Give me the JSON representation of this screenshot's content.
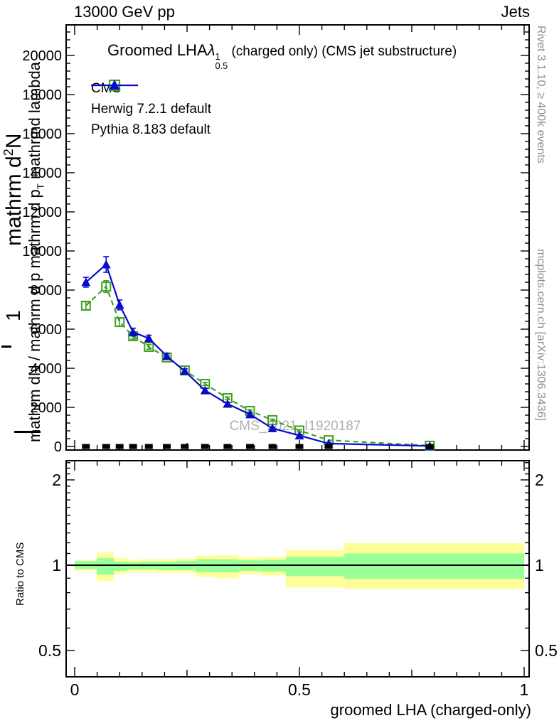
{
  "header": {
    "beam": "13000 GeV pp",
    "tag": "Jets"
  },
  "main_panel": {
    "title_main": "Groomed LHA",
    "title_lambda": "λ",
    "title_sup": "1",
    "title_sub": "0.5",
    "title_rest": " (charged only) (CMS jet substructure)",
    "watermark": "CMS_2021_I1920187",
    "ylabel_outer_pre": "mathrm d",
    "ylabel_outer_sup": "2",
    "ylabel_outer_post": "N",
    "ylabel_one": "1",
    "ylabel_inner_pre": "mathrm dN / mathrm d p mathrm d p",
    "ylabel_inner_sub": "T",
    "ylabel_inner_post": " mathrmd lambda"
  },
  "legend": [
    {
      "label": "CMS",
      "marker": "square-filled",
      "color": "#000000",
      "line": "none"
    },
    {
      "label": "Herwig 7.2.1 default",
      "marker": "square-open",
      "color": "#3fa024",
      "line": "dashed"
    },
    {
      "label": "Pythia 8.183 default",
      "marker": "triangle-filled",
      "color": "#0a0acd",
      "line": "solid"
    }
  ],
  "ratio_panel": {
    "ylabel": "Ratio to CMS"
  },
  "x_axis": {
    "label": "groomed LHA (charged-only)"
  },
  "right_margin": {
    "top": "Rivet 3.1.10, ≥ 400k events",
    "bottom": "mcplots.cern.ch [arXiv:1306.3436]"
  },
  "colors": {
    "pythia_blue": "#0a0acd",
    "herwig_green": "#3fa024",
    "cms_black": "#000000",
    "band_yellow": "#ffff99",
    "band_green": "#99ff99",
    "watermark_gray": "#b0b0b0",
    "side_text_gray": "#8c8c8c"
  },
  "chart_data": {
    "type": "line",
    "title": "Groomed LHA lambda^1_0.5 (charged only) (CMS jet substructure)",
    "xlabel": "groomed LHA (charged-only)",
    "ylabel": "mathrm dN / mathrm d p mathrm d p_T mathrmd lambda",
    "xlim": [
      0,
      1
    ],
    "ylim": [
      0,
      21600
    ],
    "grid": false,
    "legend_position": "top-left",
    "x": [
      0.025,
      0.07,
      0.1,
      0.13,
      0.165,
      0.205,
      0.245,
      0.29,
      0.34,
      0.39,
      0.44,
      0.5,
      0.565,
      0.79
    ],
    "series": [
      {
        "name": "CMS",
        "marker": "square-filled",
        "color": "#000000",
        "values": [
          0,
          0,
          0,
          0,
          0,
          0,
          0,
          0,
          0,
          0,
          0,
          0,
          0,
          0
        ]
      },
      {
        "name": "Herwig 7.2.1 default",
        "marker": "square-open",
        "color": "#3fa024",
        "dashed": true,
        "values": [
          7200,
          8180,
          6360,
          5640,
          5090,
          4550,
          3890,
          3200,
          2470,
          1820,
          1350,
          820,
          320,
          40
        ],
        "errors": [
          200,
          300,
          200,
          150,
          120,
          100,
          90,
          80,
          70,
          60,
          50,
          40,
          30,
          15
        ]
      },
      {
        "name": "Pythia 8.183 default",
        "marker": "triangle-filled",
        "color": "#0a0acd",
        "dashed": false,
        "values": [
          8400,
          9310,
          7240,
          5850,
          5530,
          4620,
          3850,
          2870,
          2180,
          1640,
          930,
          560,
          150,
          25
        ],
        "errors": [
          250,
          400,
          250,
          200,
          160,
          130,
          110,
          95,
          80,
          70,
          60,
          50,
          40,
          20
        ]
      }
    ],
    "y_ticks_major": [
      0,
      2000,
      4000,
      6000,
      8000,
      10000,
      12000,
      14000,
      16000,
      18000,
      20000
    ],
    "y_minor_step": 400,
    "x_ticks_major": [
      0,
      0.5,
      1
    ],
    "x_tick_labels": [
      "0",
      "0.5",
      "1"
    ],
    "x_ticks_mid": [
      0.25,
      0.75
    ],
    "x_minor_step": 0.05,
    "ratio": {
      "ylog": true,
      "ylim": [
        0.404,
        2.34
      ],
      "yticks_major": [
        2,
        1,
        0.5
      ],
      "ytick_labels": [
        "2",
        "1",
        "0.5"
      ],
      "yticks_minor": [
        0.4,
        0.6,
        0.7,
        0.8,
        0.9,
        1.1,
        1.2,
        1.3,
        1.4,
        1.5,
        1.6,
        1.7,
        1.8,
        1.9,
        2.1,
        2.2,
        2.3
      ],
      "reference_line": 1,
      "bin_edges": [
        0,
        0.049,
        0.087,
        0.117,
        0.148,
        0.186,
        0.226,
        0.27,
        0.316,
        0.365,
        0.415,
        0.47,
        0.535,
        0.6,
        1.0
      ],
      "yellow_band": [
        [
          0.955,
          1.045
        ],
        [
          0.88,
          1.11
        ],
        [
          0.93,
          1.06
        ],
        [
          0.945,
          1.045
        ],
        [
          0.945,
          1.05
        ],
        [
          0.94,
          1.05
        ],
        [
          0.94,
          1.055
        ],
        [
          0.91,
          1.08
        ],
        [
          0.9,
          1.085
        ],
        [
          0.93,
          1.065
        ],
        [
          0.92,
          1.07
        ],
        [
          0.835,
          1.13
        ],
        [
          0.835,
          1.13
        ],
        [
          0.825,
          1.195
        ]
      ],
      "green_band": [
        [
          0.97,
          1.035
        ],
        [
          0.925,
          1.06
        ],
        [
          0.955,
          1.03
        ],
        [
          0.965,
          1.025
        ],
        [
          0.965,
          1.03
        ],
        [
          0.96,
          1.03
        ],
        [
          0.96,
          1.035
        ],
        [
          0.945,
          1.05
        ],
        [
          0.945,
          1.05
        ],
        [
          0.955,
          1.04
        ],
        [
          0.95,
          1.045
        ],
        [
          0.915,
          1.07
        ],
        [
          0.915,
          1.07
        ],
        [
          0.895,
          1.1
        ]
      ]
    }
  }
}
